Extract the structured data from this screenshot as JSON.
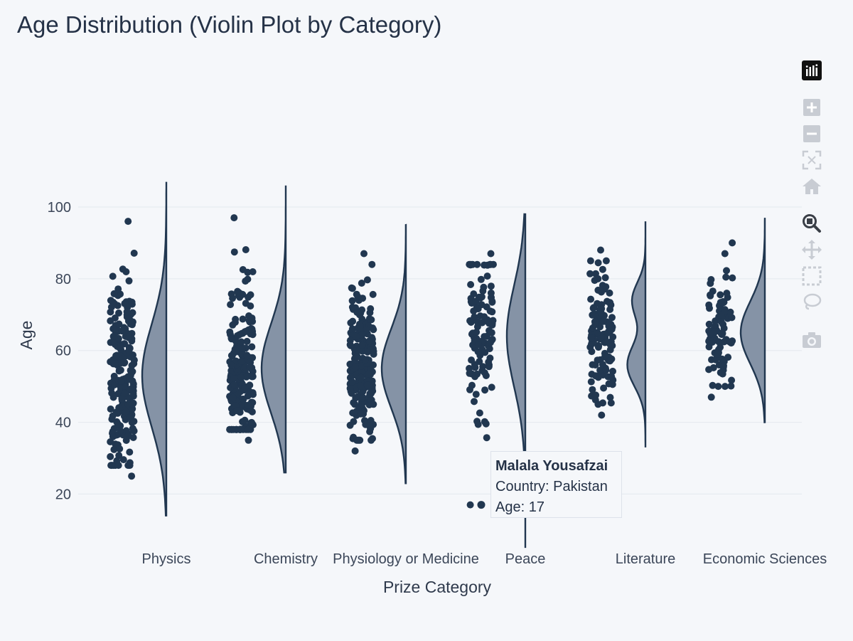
{
  "chart_data": {
    "type": "violin",
    "title": "Age Distribution (Violin Plot by Category)",
    "xlabel": "Prize Category",
    "ylabel": "Age",
    "ylim": [
      7,
      122
    ],
    "yticks": [
      20,
      40,
      60,
      80,
      100
    ],
    "grid": true,
    "categories": [
      "Physics",
      "Chemistry",
      "Physiology or Medicine",
      "Peace",
      "Literature",
      "Economic Sciences"
    ],
    "series": [
      {
        "category": "Physics",
        "points_range": [
          25,
          96
        ],
        "violin_range": [
          14,
          107
        ],
        "median_peak": 53,
        "n_points": 220
      },
      {
        "category": "Chemistry",
        "points_range": [
          35,
          97
        ],
        "violin_range": [
          26,
          106
        ],
        "median_peak": 55,
        "n_points": 190
      },
      {
        "category": "Physiology or Medicine",
        "points_range": [
          32,
          87
        ],
        "violin_range": [
          23,
          95
        ],
        "median_peak": 55,
        "n_points": 225
      },
      {
        "category": "Peace",
        "points_range": [
          17,
          87
        ],
        "violin_range": [
          5,
          98
        ],
        "median_peak": 64,
        "n_points": 110
      },
      {
        "category": "Literature",
        "points_range": [
          42,
          88
        ],
        "violin_range": [
          33,
          96
        ],
        "median_peak": 63,
        "n_points": 120
      },
      {
        "category": "Economic Sciences",
        "points_range": [
          47,
          90
        ],
        "violin_range": [
          40,
          97
        ],
        "median_peak": 65,
        "n_points": 90
      }
    ],
    "colors": {
      "points": "#213750",
      "violin_fill": "#8593a6",
      "violin_line": "#213750"
    }
  },
  "tooltip": {
    "name": "Malala Yousafzai",
    "country_line": "Country: Pakistan",
    "age_line": "Age: 17",
    "category": "Peace",
    "age": 17
  },
  "modebar": {
    "icons": [
      "plotly-logo-icon",
      "zoom-in-icon",
      "zoom-out-icon",
      "autoscale-icon",
      "reset-axes-icon",
      "zoom-icon",
      "pan-icon",
      "box-select-icon",
      "lasso-select-icon",
      "camera-icon"
    ]
  }
}
